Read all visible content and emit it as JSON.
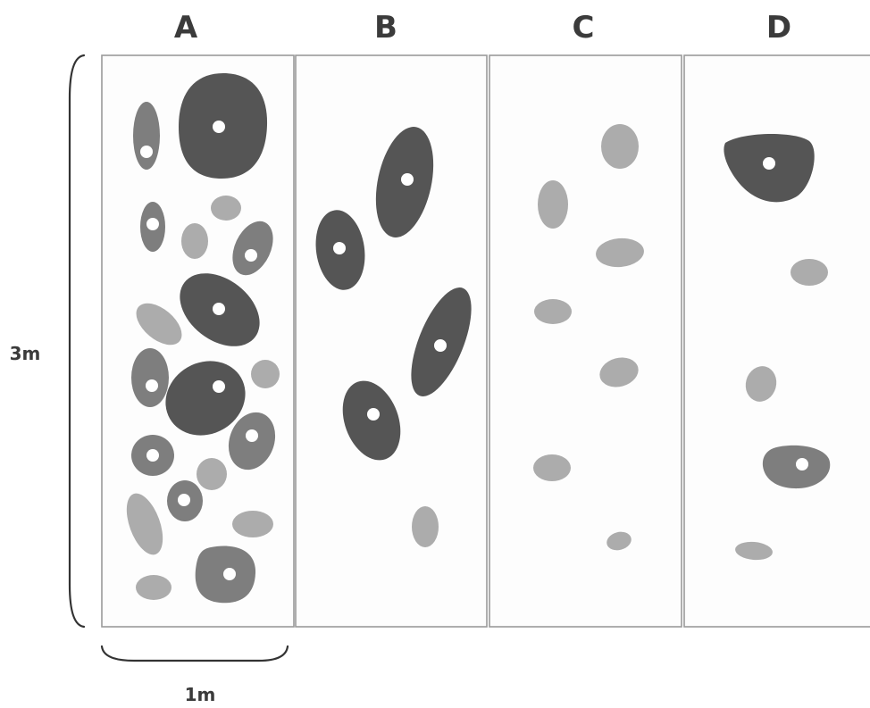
{
  "colors": {
    "dark": "#555555",
    "medium": "#7e7e7e",
    "light": "#acacac",
    "panel_border": "#9a9a9a",
    "text": "#3b3b3b"
  },
  "columns": [
    {
      "label": "A"
    },
    {
      "label": "B"
    },
    {
      "label": "C"
    },
    {
      "label": "D"
    }
  ],
  "dimensions": {
    "height": "3m",
    "width": "1m"
  }
}
